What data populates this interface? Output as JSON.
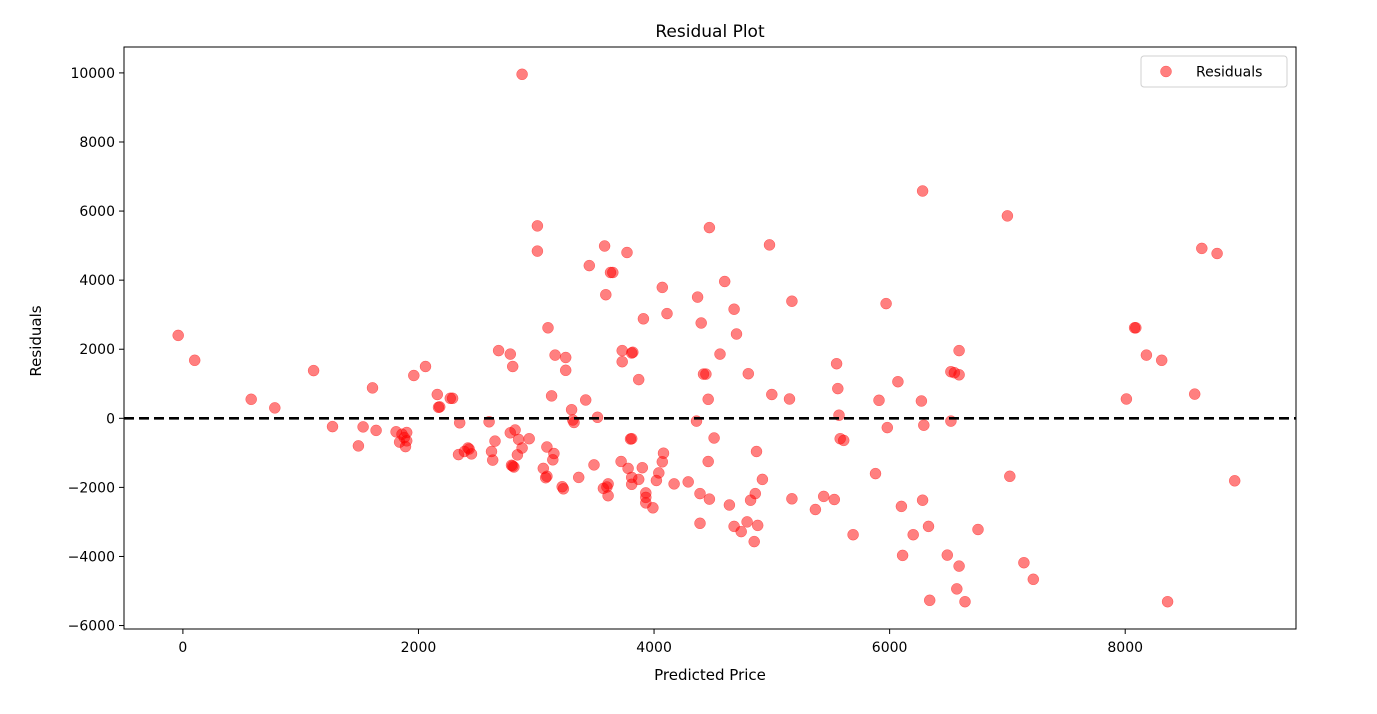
{
  "chart_data": {
    "type": "scatter",
    "title": "Residual Plot",
    "xlabel": "Predicted Price",
    "ylabel": "Residuals",
    "xlim": [
      -500,
      9450
    ],
    "ylim": [
      -6100,
      10750
    ],
    "x_ticks": [
      0,
      2000,
      4000,
      6000,
      8000
    ],
    "y_ticks": [
      -6000,
      -4000,
      -2000,
      0,
      2000,
      4000,
      6000,
      8000,
      10000
    ],
    "x_tick_labels": [
      "0",
      "2000",
      "4000",
      "6000",
      "8000"
    ],
    "y_tick_labels": [
      "−6000",
      "−4000",
      "−2000",
      "0",
      "2000",
      "4000",
      "6000",
      "8000",
      "10000"
    ],
    "reference_line": {
      "y": 0,
      "style": "dashed",
      "color": "#000000"
    },
    "grid": false,
    "legend_position": "top-right",
    "series": [
      {
        "name": "Residuals",
        "color": "#ff0000",
        "opacity": 0.5,
        "points": [
          [
            -40,
            2400
          ],
          [
            100,
            1680
          ],
          [
            580,
            550
          ],
          [
            780,
            300
          ],
          [
            1110,
            1380
          ],
          [
            1270,
            -240
          ],
          [
            1490,
            -800
          ],
          [
            1530,
            -250
          ],
          [
            1610,
            880
          ],
          [
            1640,
            -350
          ],
          [
            1960,
            1240
          ],
          [
            2060,
            1500
          ],
          [
            1810,
            -390
          ],
          [
            1840,
            -690
          ],
          [
            1860,
            -460
          ],
          [
            1880,
            -560
          ],
          [
            1890,
            -820
          ],
          [
            1900,
            -410
          ],
          [
            1900,
            -650
          ],
          [
            2160,
            690
          ],
          [
            2170,
            320
          ],
          [
            2180,
            330
          ],
          [
            2270,
            580
          ],
          [
            2290,
            580
          ],
          [
            2340,
            -1050
          ],
          [
            2350,
            -130
          ],
          [
            2390,
            -960
          ],
          [
            2420,
            -860
          ],
          [
            2430,
            -890
          ],
          [
            2450,
            -1030
          ],
          [
            2600,
            -100
          ],
          [
            2620,
            -960
          ],
          [
            2630,
            -1210
          ],
          [
            2650,
            -660
          ],
          [
            2680,
            1960
          ],
          [
            2780,
            1860
          ],
          [
            2780,
            -420
          ],
          [
            2790,
            -1360
          ],
          [
            2800,
            1500
          ],
          [
            2800,
            -1380
          ],
          [
            2810,
            -1410
          ],
          [
            2820,
            -340
          ],
          [
            2840,
            -1060
          ],
          [
            2850,
            -610
          ],
          [
            2880,
            -860
          ],
          [
            2880,
            9960
          ],
          [
            2940,
            -590
          ],
          [
            3010,
            5570
          ],
          [
            3010,
            4840
          ],
          [
            3060,
            -1450
          ],
          [
            3080,
            -1720
          ],
          [
            3090,
            -1680
          ],
          [
            3090,
            -830
          ],
          [
            3100,
            2620
          ],
          [
            3130,
            650
          ],
          [
            3140,
            -1200
          ],
          [
            3150,
            -1020
          ],
          [
            3160,
            1830
          ],
          [
            3220,
            -1980
          ],
          [
            3230,
            -2040
          ],
          [
            3250,
            1760
          ],
          [
            3250,
            1390
          ],
          [
            3300,
            250
          ],
          [
            3310,
            -50
          ],
          [
            3320,
            -120
          ],
          [
            3360,
            -1710
          ],
          [
            3420,
            530
          ],
          [
            3450,
            4420
          ],
          [
            3490,
            -1350
          ],
          [
            3520,
            30
          ],
          [
            3570,
            -2030
          ],
          [
            3580,
            4990
          ],
          [
            3590,
            3580
          ],
          [
            3600,
            -1990
          ],
          [
            3610,
            -1900
          ],
          [
            3610,
            -2240
          ],
          [
            3630,
            4220
          ],
          [
            3650,
            4220
          ],
          [
            3720,
            -1250
          ],
          [
            3730,
            1960
          ],
          [
            3730,
            1640
          ],
          [
            3770,
            4800
          ],
          [
            3780,
            -1450
          ],
          [
            3800,
            -600
          ],
          [
            3810,
            -590
          ],
          [
            3810,
            -1710
          ],
          [
            3810,
            -1910
          ],
          [
            3810,
            1890
          ],
          [
            3820,
            1910
          ],
          [
            3870,
            1120
          ],
          [
            3870,
            -1770
          ],
          [
            3900,
            -1430
          ],
          [
            3910,
            2880
          ],
          [
            3930,
            -2160
          ],
          [
            3930,
            -2450
          ],
          [
            3930,
            -2290
          ],
          [
            3990,
            -2590
          ],
          [
            4020,
            -1800
          ],
          [
            4040,
            -1580
          ],
          [
            4070,
            3790
          ],
          [
            4070,
            -1260
          ],
          [
            4080,
            -1010
          ],
          [
            4110,
            3030
          ],
          [
            4170,
            -1900
          ],
          [
            4290,
            -1840
          ],
          [
            4360,
            -80
          ],
          [
            4370,
            3510
          ],
          [
            4390,
            -2180
          ],
          [
            4390,
            -3040
          ],
          [
            4400,
            2760
          ],
          [
            4420,
            1280
          ],
          [
            4440,
            1280
          ],
          [
            4460,
            550
          ],
          [
            4460,
            -1250
          ],
          [
            4470,
            5520
          ],
          [
            4470,
            -2340
          ],
          [
            4510,
            -570
          ],
          [
            4560,
            1860
          ],
          [
            4600,
            3960
          ],
          [
            4640,
            -2510
          ],
          [
            4680,
            3160
          ],
          [
            4680,
            -3130
          ],
          [
            4700,
            2440
          ],
          [
            4740,
            -3280
          ],
          [
            4790,
            -3000
          ],
          [
            4800,
            1290
          ],
          [
            4820,
            -2370
          ],
          [
            4850,
            -3570
          ],
          [
            4860,
            -2180
          ],
          [
            4870,
            -960
          ],
          [
            4880,
            -3100
          ],
          [
            4920,
            -1770
          ],
          [
            4980,
            5020
          ],
          [
            5000,
            690
          ],
          [
            5150,
            560
          ],
          [
            5170,
            3390
          ],
          [
            5170,
            -2330
          ],
          [
            5370,
            -2640
          ],
          [
            5440,
            -2260
          ],
          [
            5530,
            -2350
          ],
          [
            5550,
            1580
          ],
          [
            5560,
            860
          ],
          [
            5570,
            90
          ],
          [
            5580,
            -590
          ],
          [
            5610,
            -640
          ],
          [
            5690,
            -3370
          ],
          [
            5880,
            -1600
          ],
          [
            5910,
            520
          ],
          [
            5970,
            3320
          ],
          [
            5980,
            -270
          ],
          [
            6070,
            1060
          ],
          [
            6100,
            -2550
          ],
          [
            6110,
            -3970
          ],
          [
            6200,
            -3370
          ],
          [
            6270,
            500
          ],
          [
            6280,
            6580
          ],
          [
            6280,
            -2370
          ],
          [
            6290,
            -200
          ],
          [
            6330,
            -3130
          ],
          [
            6340,
            -5270
          ],
          [
            6490,
            -3960
          ],
          [
            6520,
            1350
          ],
          [
            6520,
            -80
          ],
          [
            6550,
            1320
          ],
          [
            6570,
            -4940
          ],
          [
            6590,
            1960
          ],
          [
            6590,
            1260
          ],
          [
            6590,
            -4280
          ],
          [
            6640,
            -5310
          ],
          [
            6750,
            -3220
          ],
          [
            7000,
            5860
          ],
          [
            7020,
            -1680
          ],
          [
            7140,
            -4180
          ],
          [
            7220,
            -4660
          ],
          [
            8010,
            560
          ],
          [
            8080,
            2620
          ],
          [
            8090,
            2620
          ],
          [
            8180,
            1830
          ],
          [
            8310,
            1680
          ],
          [
            8360,
            -5310
          ],
          [
            8590,
            700
          ],
          [
            8650,
            4920
          ],
          [
            8780,
            4770
          ],
          [
            8930,
            -1810
          ]
        ]
      }
    ]
  }
}
